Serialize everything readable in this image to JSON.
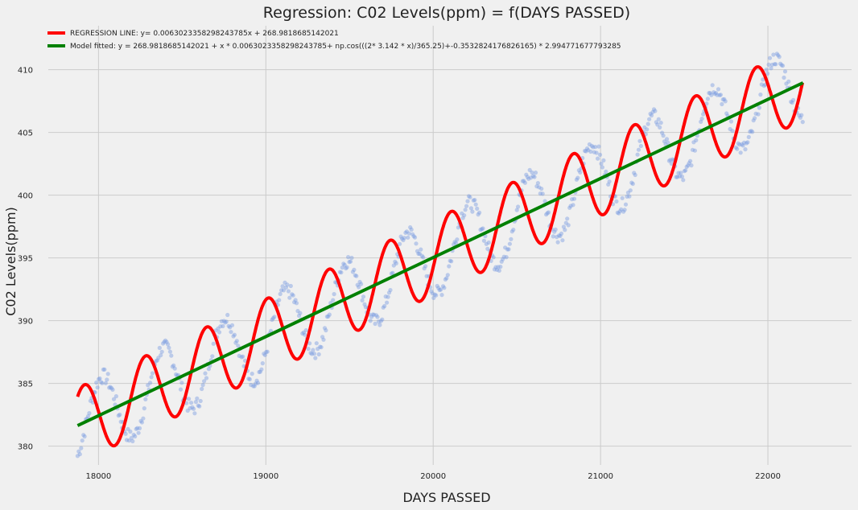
{
  "chart_data": {
    "type": "scatter",
    "title": "Regression: C02 Levels(ppm) = f(DAYS PASSED)",
    "xlabel": "DAYS PASSED",
    "ylabel": "C02 Levels(ppm)",
    "xlim": [
      17700,
      22500
    ],
    "ylim": [
      378.5,
      413.5
    ],
    "xticks": [
      18000,
      19000,
      20000,
      21000,
      22000
    ],
    "yticks": [
      380,
      385,
      390,
      395,
      400,
      405,
      410
    ],
    "grid": true,
    "legend_position": "top-left",
    "regression": {
      "slope": 0.006302335829824378,
      "intercept": 268.9818685142021
    },
    "model": {
      "intercept": 268.9818685142021,
      "slope": 0.006302335829824378,
      "period": 365.25,
      "phase": -0.3532824176826165,
      "amplitude": 2.994771677793285
    },
    "x_range": [
      17875,
      22210
    ],
    "scatter_color": "#7b9be0",
    "series": [
      {
        "name": "REGRESSION LINE: y= 0.0063023358298243785x + 268.9818685142021",
        "color": "#ff0000"
      },
      {
        "name": "Model fitted: y =  268.9818685142021 + x * 0.0063023358298243785+ np.cos(((2* 3.142 * x)/365.25)+-0.3532824176826165) * 2.994771677793285",
        "color": "#008000"
      }
    ]
  }
}
